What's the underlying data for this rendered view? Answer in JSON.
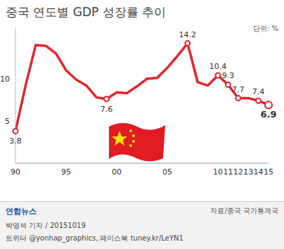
{
  "chart_data": {
    "type": "line",
    "title": "중국 연도별 GDP 성장률 추이",
    "annotations": {
      "unit": "단위: %",
      "source": "자료/중국 국가통계국",
      "byline": "박영석 기자 / 20151019",
      "social": "트위터 @yonhap_graphics, 페이스북 tuney.kr/LeYN1",
      "logo": "연합뉴스"
    },
    "categories": [
      "90",
      null,
      null,
      null,
      null,
      "95",
      null,
      null,
      null,
      null,
      "00",
      null,
      null,
      null,
      null,
      "05",
      null,
      null,
      null,
      null,
      "10",
      "11",
      "12",
      "13",
      "14",
      "15"
    ],
    "values": [
      3.8,
      9.2,
      14.0,
      13.9,
      13.0,
      11.0,
      9.9,
      9.2,
      7.8,
      7.6,
      8.4,
      8.3,
      9.1,
      10.0,
      10.1,
      11.3,
      12.7,
      14.2,
      9.6,
      9.2,
      10.4,
      9.3,
      7.7,
      7.7,
      7.4,
      6.9
    ],
    "value_labels": [
      "3.8",
      null,
      null,
      null,
      null,
      null,
      null,
      null,
      null,
      "7.6",
      null,
      null,
      null,
      null,
      null,
      null,
      null,
      "14.2",
      null,
      null,
      "10.4",
      "9.3",
      "7.7",
      null,
      "7.4",
      "6.9"
    ],
    "data_labels": true,
    "color": "#e0262c",
    "marker": "circle",
    "ylim": [
      0,
      16
    ],
    "yticks": [
      5,
      10
    ],
    "grid": false
  }
}
